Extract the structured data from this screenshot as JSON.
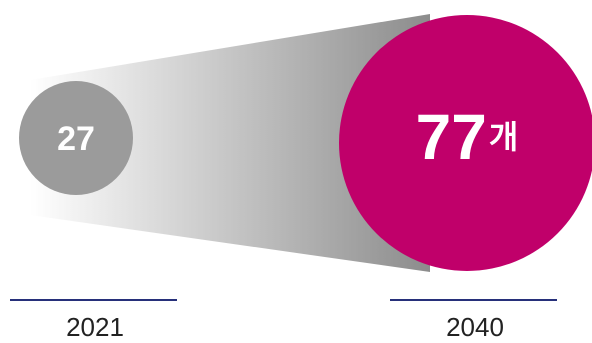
{
  "chart_data": {
    "type": "bubble",
    "categories": [
      "2021",
      "2040"
    ],
    "values": [
      27,
      77
    ],
    "unit": "개",
    "value_labels": [
      "27",
      "77"
    ],
    "colors": {
      "start_bubble": "#9b9b9b",
      "end_bubble": "#c0006a",
      "underline": "#27307a",
      "value_text": "#ffffff",
      "funnel_light": "#ffffff",
      "funnel_dark": "#8c8c8c"
    }
  }
}
